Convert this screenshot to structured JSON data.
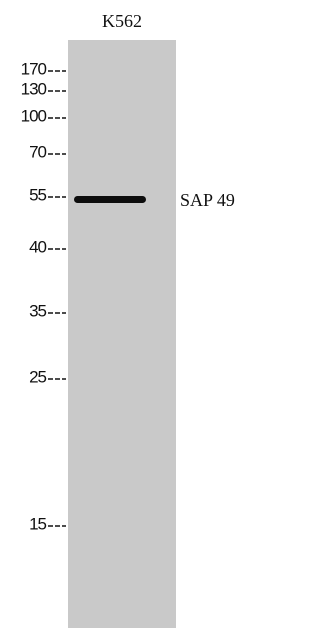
{
  "lane": {
    "label": "K562"
  },
  "markers": [
    170,
    130,
    100,
    70,
    55,
    40,
    35,
    25,
    15
  ],
  "band": {
    "label": "SAP 49"
  }
}
